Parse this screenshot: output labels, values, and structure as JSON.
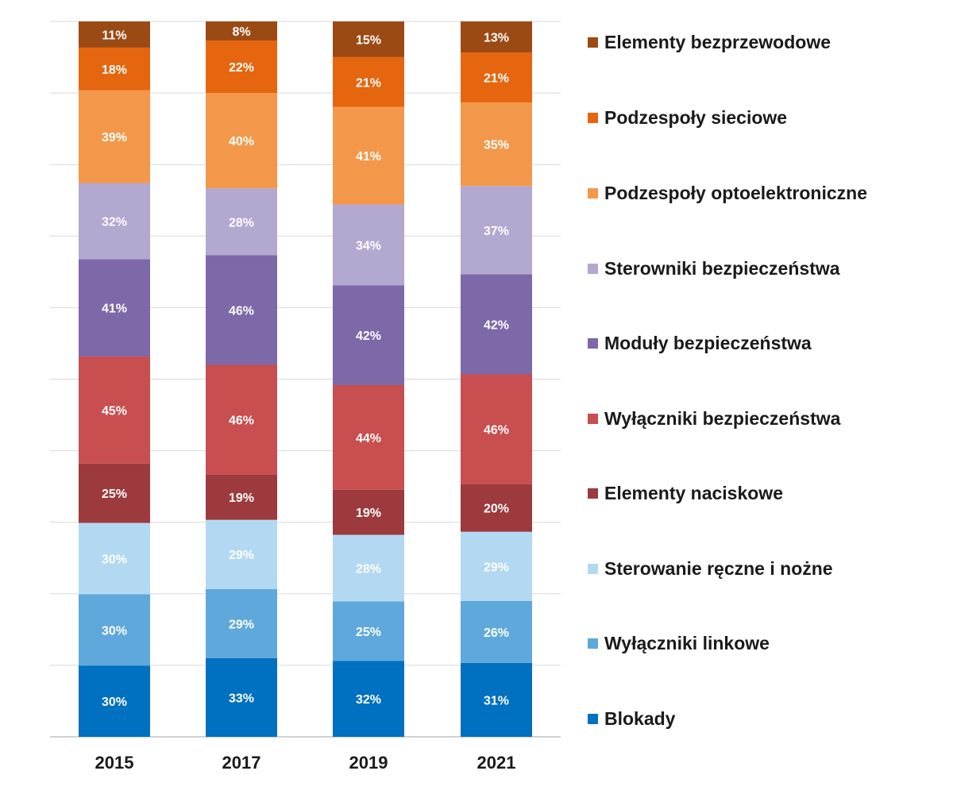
{
  "chart_data": {
    "type": "bar",
    "stacked": true,
    "categories": [
      "2015",
      "2017",
      "2019",
      "2021"
    ],
    "legend_position": "right",
    "grid": true,
    "series": [
      {
        "name": "Blokady",
        "color": "#0070c0",
        "values": [
          30,
          33,
          32,
          31
        ]
      },
      {
        "name": "Wyłączniki linkowe",
        "color": "#5fa8dc",
        "values": [
          30,
          29,
          25,
          26
        ]
      },
      {
        "name": "Sterowanie ręczne i nożne",
        "color": "#b3d8f2",
        "values": [
          30,
          29,
          28,
          29
        ]
      },
      {
        "name": "Elementy naciskowe",
        "color": "#9c3a3d",
        "values": [
          25,
          19,
          19,
          20
        ]
      },
      {
        "name": "Wyłączniki bezpieczeństwa",
        "color": "#c84e4f",
        "values": [
          45,
          46,
          44,
          46
        ]
      },
      {
        "name": "Moduły bezpieczeństwa",
        "color": "#7d68a8",
        "values": [
          41,
          46,
          42,
          42
        ]
      },
      {
        "name": "Sterowniki bezpieczeństwa",
        "color": "#b3a8cf",
        "values": [
          32,
          28,
          34,
          37
        ]
      },
      {
        "name": "Podzespoły optoelektroniczne",
        "color": "#f3984a",
        "values": [
          39,
          40,
          41,
          35
        ]
      },
      {
        "name": "Podzespoły sieciowe",
        "color": "#e5660f",
        "values": [
          18,
          22,
          21,
          21
        ]
      },
      {
        "name": "Elementy bezprzewodowe",
        "color": "#9c4a14",
        "values": [
          11,
          8,
          15,
          13
        ]
      }
    ]
  }
}
